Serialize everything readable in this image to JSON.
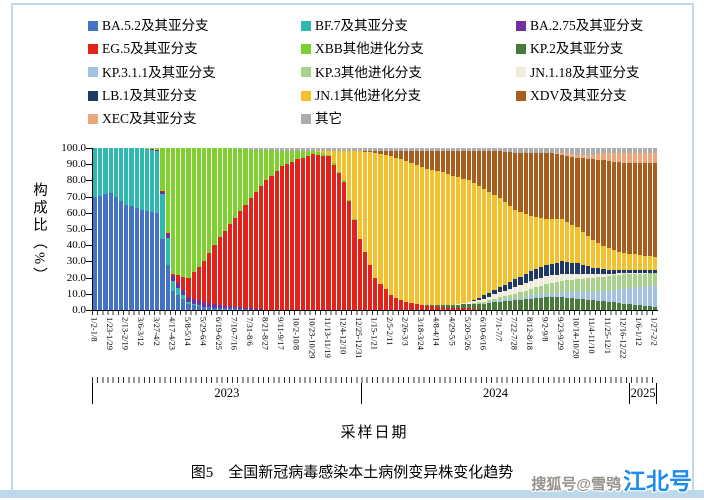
{
  "page": {
    "watermark_prefix": "搜狐号@雪鸮",
    "watermark_brand": "江北号"
  },
  "chart_data": {
    "type": "bar",
    "stacked": true,
    "title": "图5　全国新冠病毒感染本土病例变异株变化趋势",
    "xlabel": "采样日期",
    "ylabel": "构成比（%）",
    "ylim": [
      0,
      100
    ],
    "grid": false,
    "legend_position": "top",
    "legend_columns": 3,
    "y_ticks": [
      "100.0",
      "90.0",
      "80.0",
      "70.0",
      "60.0",
      "50.0",
      "40.0",
      "30.0",
      "20.0",
      "10.0",
      "0.0"
    ],
    "weeks_total": 109,
    "label_every_n_weeks": 3,
    "x_labels": [
      "1/2-1/8",
      "1/23-1/29",
      "2/13-2/19",
      "3/6-3/12",
      "3/27-4/2",
      "4/17-4/23",
      "5/8-5/14",
      "5/29-6/4",
      "6/19-6/25",
      "7/10-7/16",
      "7/31-8/6",
      "8/21-8/27",
      "9/11-9/17",
      "10/2-10/8",
      "10/23-10/29",
      "11/13-11/19",
      "12/4-12/10",
      "12/25-12/31",
      "1/15-1/21",
      "2/5-2/11",
      "2/26-3/3",
      "3/18-3/24",
      "4/8-4/14",
      "4/29-5/5",
      "5/20-5/26",
      "6/10-6/16",
      "7/1-7/7",
      "7/22-7/28",
      "8/12-8/18",
      "9/2-9/8",
      "9/23-9/29",
      "10/14-10/20",
      "11/4-11/10",
      "11/25-12/1",
      "12/16-12/22",
      "1/6-1/12",
      "1/27-2/2"
    ],
    "year_bands": [
      {
        "label": "2023",
        "weeks": 52
      },
      {
        "label": "2024",
        "weeks": 52
      },
      {
        "label": "2025",
        "weeks": 5
      }
    ],
    "series": [
      {
        "name": "BA.5.2及其亚分支",
        "color": "#4472C4",
        "values": [
          70,
          72,
          65,
          62,
          60,
          12,
          4,
          2,
          1,
          1,
          0,
          0,
          0,
          0,
          0,
          0,
          0,
          0,
          0,
          0,
          0,
          0,
          0,
          0,
          0,
          0,
          0,
          0,
          0,
          0,
          0,
          0,
          0,
          0,
          0,
          0,
          0
        ]
      },
      {
        "name": "BF.7及其亚分支",
        "color": "#2FB8B0",
        "values": [
          30,
          28,
          35,
          38,
          38,
          6,
          1,
          0,
          0,
          0,
          0,
          0,
          0,
          0,
          0,
          0,
          0,
          0,
          0,
          0,
          0,
          0,
          0,
          0,
          0,
          0,
          0,
          0,
          0,
          0,
          0,
          0,
          0,
          0,
          0,
          0,
          0
        ]
      },
      {
        "name": "BA.2.75及其亚分支",
        "color": "#7030A0",
        "values": [
          0,
          0,
          0,
          0,
          1,
          3,
          3,
          3,
          2,
          1,
          1,
          0,
          0,
          0,
          0,
          0,
          0,
          0,
          0,
          0,
          0,
          0,
          0,
          0,
          0,
          0,
          0,
          0,
          0,
          0,
          0,
          0,
          0,
          0,
          0,
          0,
          0
        ]
      },
      {
        "name": "EG.5及其亚分支",
        "color": "#E2231C",
        "values": [
          0,
          0,
          0,
          0,
          0,
          1,
          12,
          25,
          42,
          55,
          68,
          80,
          89,
          93,
          96,
          95,
          79,
          44,
          20,
          9,
          5,
          3,
          2,
          1,
          1,
          0,
          0,
          0,
          0,
          0,
          0,
          0,
          0,
          0,
          0,
          0,
          0
        ]
      },
      {
        "name": "XBB其他进化分支",
        "color": "#7ED02F",
        "values": [
          0,
          0,
          0,
          0,
          1,
          78,
          80,
          70,
          55,
          43,
          30,
          19,
          9,
          5,
          2,
          1,
          1,
          0,
          0,
          0,
          0,
          0,
          0,
          0,
          0,
          0,
          0,
          0,
          0,
          0,
          0,
          0,
          0,
          0,
          0,
          0,
          0
        ]
      },
      {
        "name": "KP.2及其亚分支",
        "color": "#4A7A3B",
        "values": [
          0,
          0,
          0,
          0,
          0,
          0,
          0,
          0,
          0,
          0,
          0,
          0,
          0,
          0,
          0,
          0,
          0,
          0,
          0,
          0,
          0,
          0,
          1,
          2,
          3,
          4,
          5,
          6,
          7,
          8,
          8,
          7,
          6,
          5,
          4,
          3,
          2
        ]
      },
      {
        "name": "KP.3.1.1及其亚分支",
        "color": "#A4C0E2",
        "values": [
          0,
          0,
          0,
          0,
          0,
          0,
          0,
          0,
          0,
          0,
          0,
          0,
          0,
          0,
          0,
          0,
          0,
          0,
          0,
          0,
          0,
          0,
          0,
          0,
          0,
          0,
          1,
          1,
          2,
          2,
          3,
          4,
          5,
          7,
          9,
          11,
          13
        ]
      },
      {
        "name": "KP.3其他进化分支",
        "color": "#A9D18E",
        "values": [
          0,
          0,
          0,
          0,
          0,
          0,
          0,
          0,
          0,
          0,
          0,
          0,
          0,
          0,
          0,
          0,
          0,
          0,
          0,
          0,
          0,
          0,
          0,
          0,
          0,
          1,
          2,
          3,
          4,
          6,
          7,
          8,
          9,
          9,
          9,
          8,
          8
        ]
      },
      {
        "name": "JN.1.18及其亚分支",
        "color": "#F0EBDB",
        "values": [
          0,
          0,
          0,
          0,
          0,
          0,
          0,
          0,
          0,
          0,
          0,
          0,
          0,
          0,
          0,
          0,
          0,
          0,
          0,
          0,
          0,
          0,
          0,
          0,
          1,
          2,
          3,
          4,
          5,
          5,
          4,
          3,
          2,
          1,
          1,
          1,
          0
        ]
      },
      {
        "name": "LB.1及其亚分支",
        "color": "#1F3864",
        "values": [
          0,
          0,
          0,
          0,
          0,
          0,
          0,
          0,
          0,
          0,
          0,
          0,
          0,
          0,
          0,
          0,
          0,
          0,
          0,
          0,
          0,
          0,
          0,
          0,
          0,
          2,
          3,
          5,
          6,
          7,
          8,
          7,
          4,
          3,
          2,
          2,
          2
        ]
      },
      {
        "name": "JN.1其他进化分支",
        "color": "#F2C12E",
        "values": [
          0,
          0,
          0,
          0,
          0,
          0,
          0,
          0,
          0,
          0,
          0,
          0,
          0,
          0,
          0,
          2,
          18,
          54,
          77,
          86,
          87,
          85,
          83,
          80,
          75,
          66,
          55,
          43,
          34,
          28,
          26,
          22,
          17,
          13,
          10,
          9,
          8
        ]
      },
      {
        "name": "XDV及其亚分支",
        "color": "#A65E1E",
        "values": [
          0,
          0,
          0,
          0,
          0,
          0,
          0,
          0,
          0,
          0,
          0,
          0,
          0,
          0,
          0,
          0,
          0,
          0,
          1,
          3,
          6,
          10,
          12,
          15,
          18,
          23,
          29,
          35,
          39,
          41,
          40,
          43,
          50,
          54,
          56,
          57,
          58
        ]
      },
      {
        "name": "XEC及其亚分支",
        "color": "#ECA87A",
        "values": [
          0,
          0,
          0,
          0,
          0,
          0,
          0,
          0,
          0,
          0,
          0,
          0,
          0,
          0,
          0,
          0,
          0,
          0,
          0,
          0,
          0,
          0,
          0,
          0,
          0,
          0,
          0,
          0,
          0,
          0,
          1,
          2,
          3,
          5,
          6,
          6,
          6
        ]
      },
      {
        "name": "其它",
        "color": "#ADADAD",
        "values": [
          0,
          0,
          0,
          0,
          0,
          0,
          0,
          0,
          0,
          0,
          1,
          1,
          2,
          2,
          2,
          2,
          2,
          2,
          2,
          2,
          2,
          2,
          2,
          2,
          2,
          2,
          2,
          3,
          3,
          3,
          3,
          4,
          4,
          3,
          3,
          3,
          3
        ]
      }
    ]
  }
}
